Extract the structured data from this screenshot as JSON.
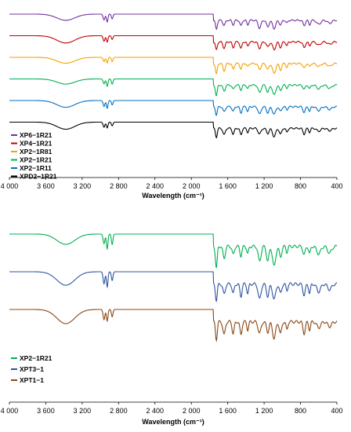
{
  "chart_data": [
    {
      "type": "line",
      "xlabel": "Wavelength (cm⁻¹)",
      "xlim": [
        4000,
        400
      ],
      "x_reversed": true,
      "x_ticks": [
        "4 000",
        "3 600",
        "3 200",
        "2 800",
        "2 400",
        "2 000",
        "1 600",
        "1 200",
        "800",
        "400"
      ],
      "x_tick_values": [
        4000,
        3600,
        3200,
        2800,
        2400,
        2000,
        1600,
        1200,
        800,
        400
      ],
      "grid": false,
      "legend_position": "bottom-left",
      "series": [
        {
          "name": "XP6−1R21",
          "color": "#7030A0",
          "offset": 0
        },
        {
          "name": "XP4−1R21",
          "color": "#C00000",
          "offset": 1
        },
        {
          "name": "XP2−1R81",
          "color": "#F4A100",
          "offset": 2
        },
        {
          "name": "XP2−1R21",
          "color": "#00B050",
          "offset": 3
        },
        {
          "name": "XP2−1R11",
          "color": "#0070C0",
          "offset": 4
        },
        {
          "name": "XPD2−1R21",
          "color": "#000000",
          "offset": 5
        }
      ]
    },
    {
      "type": "line",
      "xlabel": "Wavelength (cm⁻¹)",
      "xlim": [
        4000,
        400
      ],
      "x_reversed": true,
      "x_ticks": [
        "4 000",
        "3 600",
        "3 200",
        "2 800",
        "2 400",
        "2 000",
        "1 600",
        "1 200",
        "800",
        "400"
      ],
      "x_tick_values": [
        4000,
        3600,
        3200,
        2800,
        2400,
        2000,
        1600,
        1200,
        800,
        400
      ],
      "grid": false,
      "legend_position": "bottom-left",
      "series": [
        {
          "name": "XP2−1R21",
          "color": "#00B050",
          "offset": 0
        },
        {
          "name": "XPT3−1",
          "color": "#2E55A0",
          "offset": 1
        },
        {
          "name": "XPT1−1",
          "color": "#8B4513",
          "offset": 2
        }
      ]
    }
  ]
}
